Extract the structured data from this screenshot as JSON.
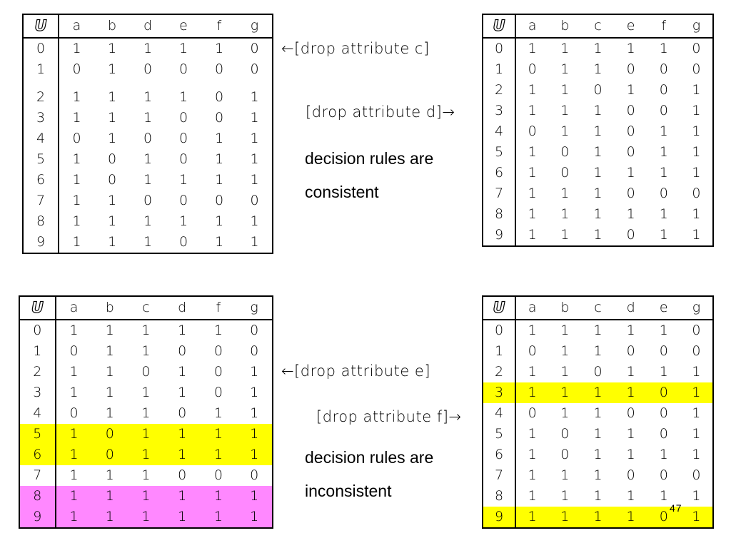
{
  "tables": {
    "t1": {
      "headers": [
        "U",
        "a",
        "b",
        "d",
        "e",
        "f",
        "g"
      ],
      "rows": [
        [
          "0",
          "1",
          "1",
          "1",
          "1",
          "1",
          "0"
        ],
        [
          "1",
          "0",
          "1",
          "0",
          "0",
          "0",
          "0"
        ],
        [
          "2",
          "1",
          "1",
          "1",
          "1",
          "0",
          "1"
        ],
        [
          "3",
          "1",
          "1",
          "1",
          "0",
          "0",
          "1"
        ],
        [
          "4",
          "0",
          "1",
          "0",
          "0",
          "1",
          "1"
        ],
        [
          "5",
          "1",
          "0",
          "1",
          "0",
          "1",
          "1"
        ],
        [
          "6",
          "1",
          "0",
          "1",
          "1",
          "1",
          "1"
        ],
        [
          "7",
          "1",
          "1",
          "0",
          "0",
          "0",
          "0"
        ],
        [
          "8",
          "1",
          "1",
          "1",
          "1",
          "1",
          "1"
        ],
        [
          "9",
          "1",
          "1",
          "1",
          "0",
          "1",
          "1"
        ]
      ]
    },
    "t2": {
      "headers": [
        "U",
        "a",
        "b",
        "c",
        "e",
        "f",
        "g"
      ],
      "rows": [
        [
          "0",
          "1",
          "1",
          "1",
          "1",
          "1",
          "0"
        ],
        [
          "1",
          "0",
          "1",
          "1",
          "0",
          "0",
          "0"
        ],
        [
          "2",
          "1",
          "1",
          "0",
          "1",
          "0",
          "1"
        ],
        [
          "3",
          "1",
          "1",
          "1",
          "0",
          "0",
          "1"
        ],
        [
          "4",
          "0",
          "1",
          "1",
          "0",
          "1",
          "1"
        ],
        [
          "5",
          "1",
          "0",
          "1",
          "0",
          "1",
          "1"
        ],
        [
          "6",
          "1",
          "0",
          "1",
          "1",
          "1",
          "1"
        ],
        [
          "7",
          "1",
          "1",
          "1",
          "0",
          "0",
          "0"
        ],
        [
          "8",
          "1",
          "1",
          "1",
          "1",
          "1",
          "1"
        ],
        [
          "9",
          "1",
          "1",
          "1",
          "0",
          "1",
          "1"
        ]
      ]
    },
    "t3": {
      "headers": [
        "U",
        "a",
        "b",
        "c",
        "d",
        "f",
        "g"
      ],
      "rows": [
        [
          "0",
          "1",
          "1",
          "1",
          "1",
          "1",
          "0"
        ],
        [
          "1",
          "0",
          "1",
          "1",
          "0",
          "0",
          "0"
        ],
        [
          "2",
          "1",
          "1",
          "0",
          "1",
          "0",
          "1"
        ],
        [
          "3",
          "1",
          "1",
          "1",
          "1",
          "0",
          "1"
        ],
        [
          "4",
          "0",
          "1",
          "1",
          "0",
          "1",
          "1"
        ],
        [
          "5",
          "1",
          "0",
          "1",
          "1",
          "1",
          "1"
        ],
        [
          "6",
          "1",
          "0",
          "1",
          "1",
          "1",
          "1"
        ],
        [
          "7",
          "1",
          "1",
          "1",
          "0",
          "0",
          "0"
        ],
        [
          "8",
          "1",
          "1",
          "1",
          "1",
          "1",
          "1"
        ],
        [
          "9",
          "1",
          "1",
          "1",
          "1",
          "1",
          "1"
        ]
      ],
      "highlights": {
        "5": "yellow",
        "6": "yellow",
        "8": "pink",
        "9": "pink"
      }
    },
    "t4": {
      "headers": [
        "U",
        "a",
        "b",
        "c",
        "d",
        "e",
        "g"
      ],
      "rows": [
        [
          "0",
          "1",
          "1",
          "1",
          "1",
          "1",
          "0"
        ],
        [
          "1",
          "0",
          "1",
          "1",
          "0",
          "0",
          "0"
        ],
        [
          "2",
          "1",
          "1",
          "0",
          "1",
          "1",
          "1"
        ],
        [
          "3",
          "1",
          "1",
          "1",
          "1",
          "0",
          "1"
        ],
        [
          "4",
          "0",
          "1",
          "1",
          "0",
          "0",
          "1"
        ],
        [
          "5",
          "1",
          "0",
          "1",
          "1",
          "0",
          "1"
        ],
        [
          "6",
          "1",
          "0",
          "1",
          "1",
          "1",
          "1"
        ],
        [
          "7",
          "1",
          "1",
          "1",
          "0",
          "0",
          "0"
        ],
        [
          "8",
          "1",
          "1",
          "1",
          "1",
          "1",
          "1"
        ],
        [
          "9",
          "1",
          "1",
          "1",
          "1",
          "0",
          "1"
        ]
      ],
      "highlights": {
        "3": "yellow",
        "9": "yellow"
      }
    }
  },
  "notes": {
    "drop_c": "←[drop attribute c]",
    "drop_d": "[drop attribute d]→",
    "drop_e": "←[drop attribute e]",
    "drop_f": "[drop attribute f]→"
  },
  "messages": {
    "consistent_line1": "decision rules are",
    "consistent_line2": "consistent",
    "inconsistent_line1": "decision rules are",
    "inconsistent_line2": "inconsistent"
  },
  "colors": {
    "highlight_yellow": "#ffff00",
    "highlight_pink": "#ff88ff"
  },
  "slide_number": "47"
}
